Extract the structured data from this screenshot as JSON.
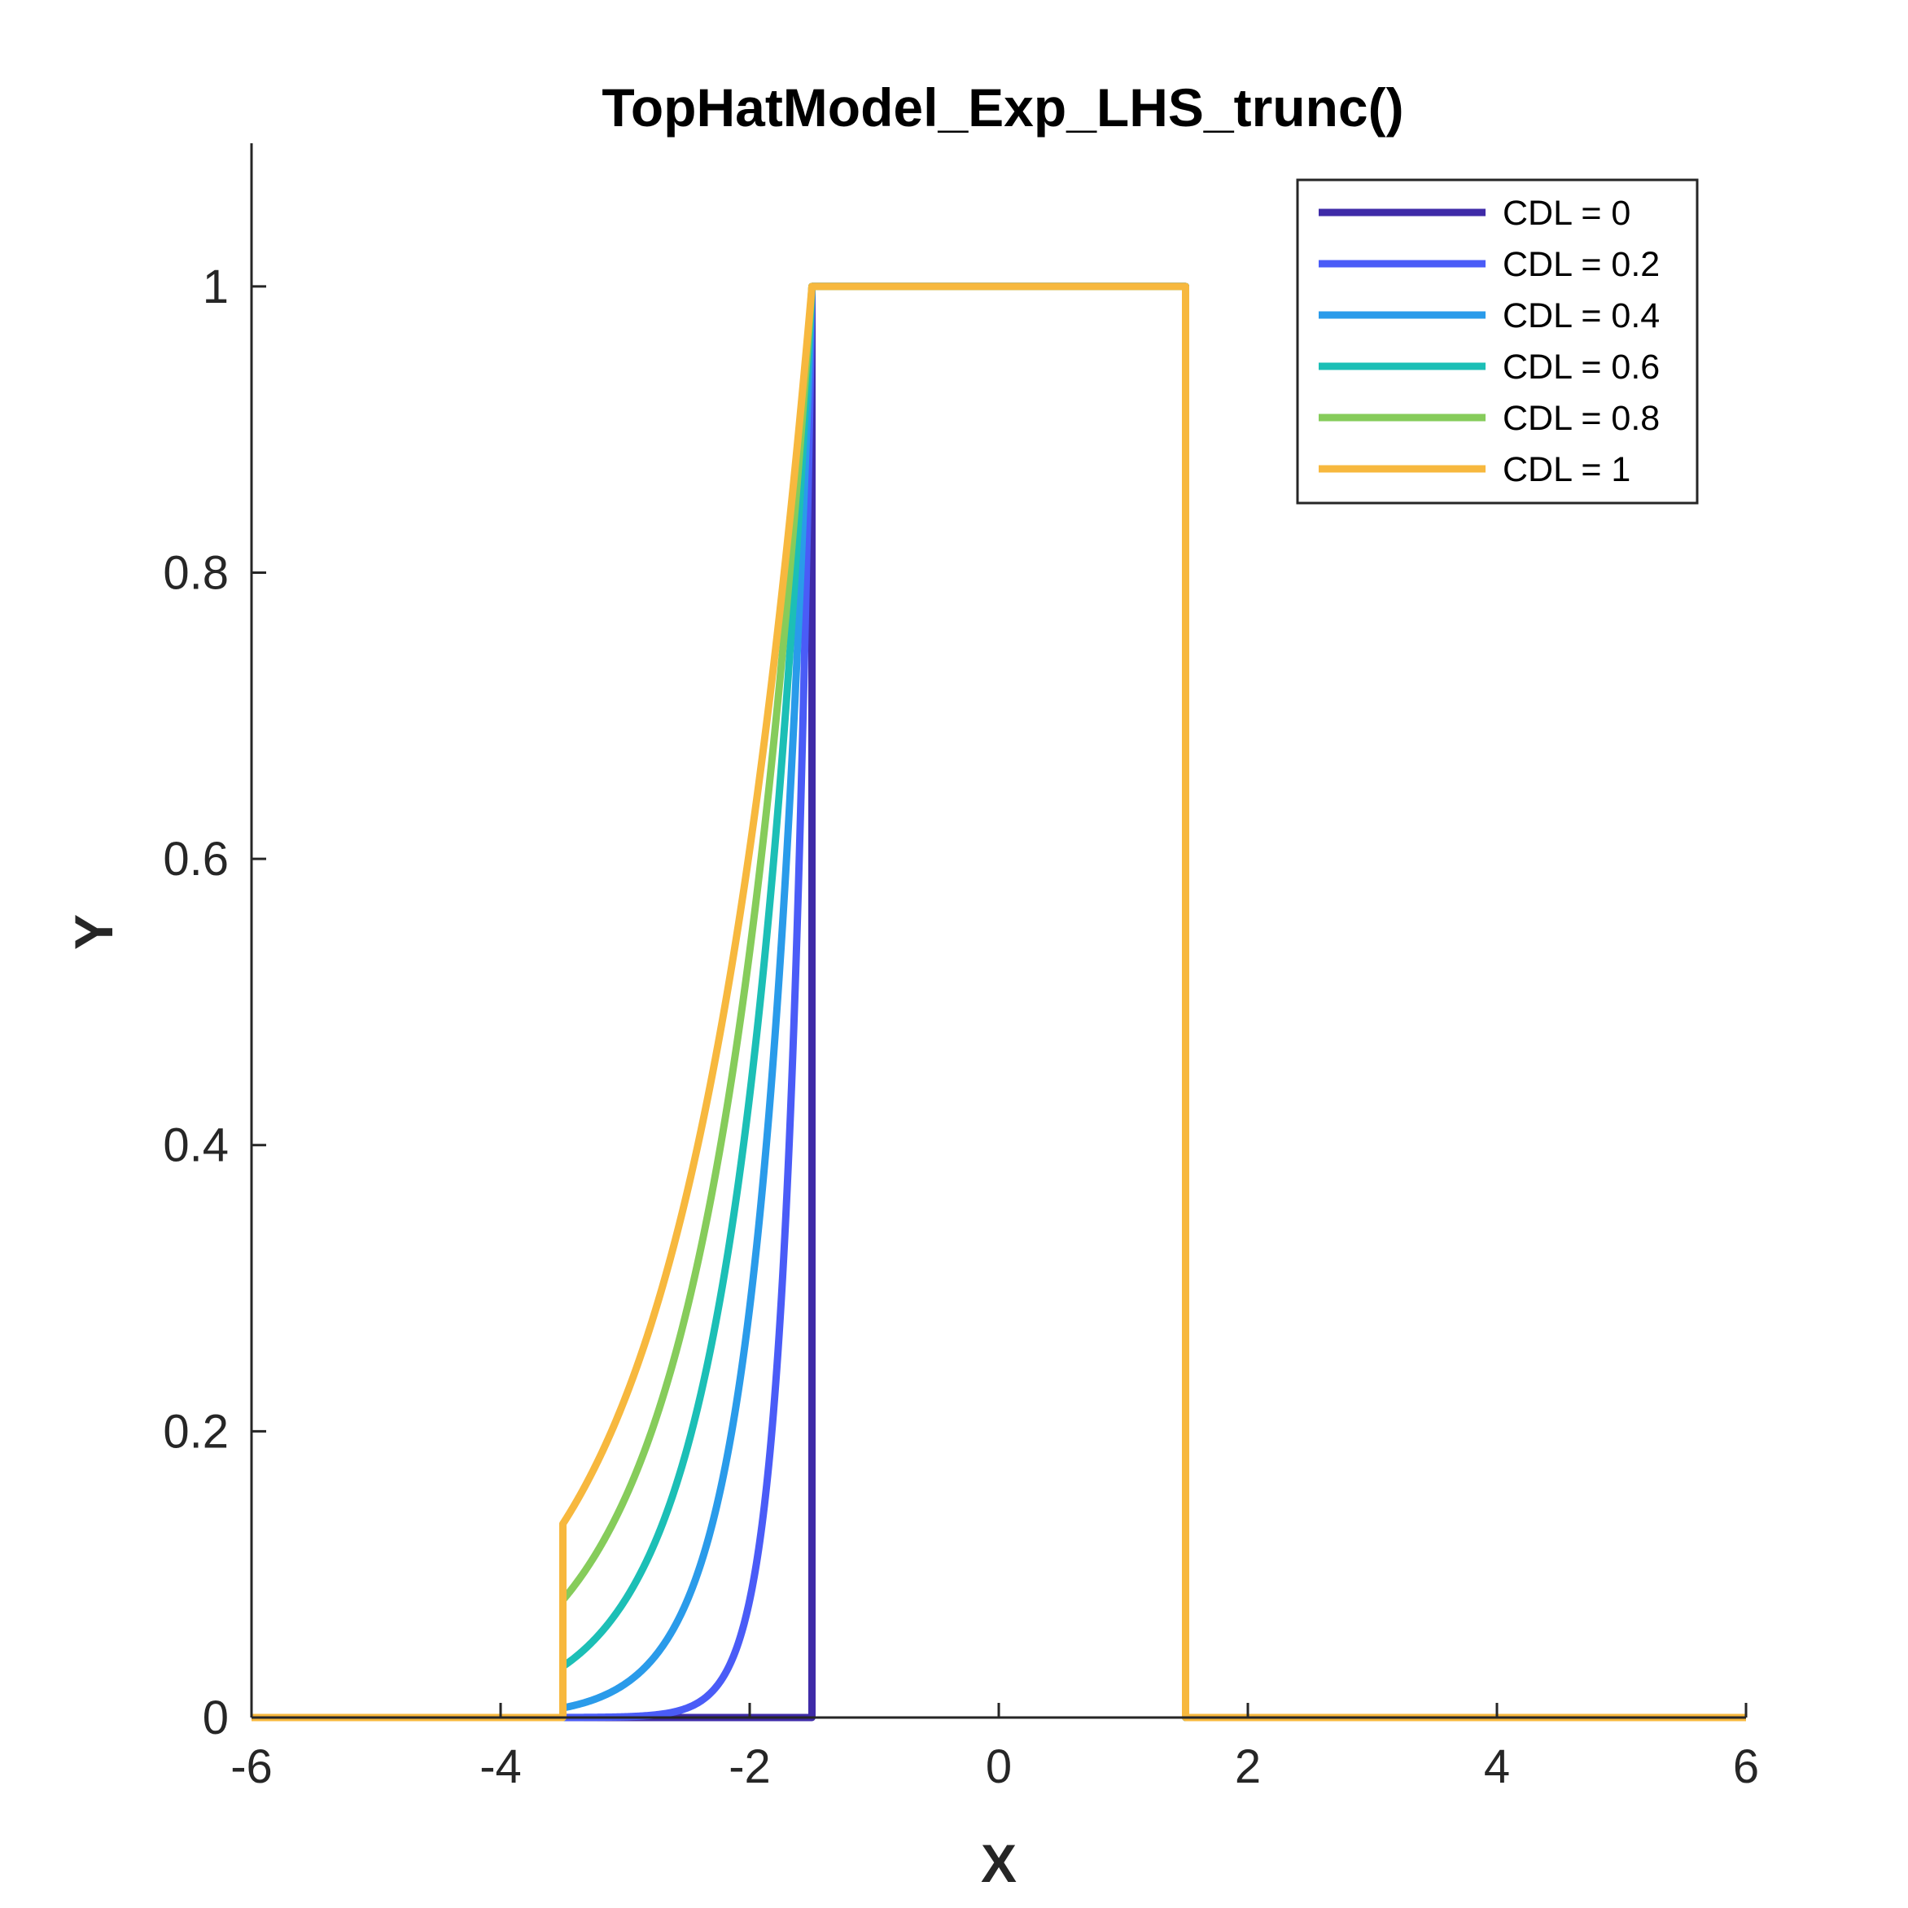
{
  "chart_data": {
    "type": "line",
    "title": "TopHatModel_Exp_LHS_trunc()",
    "xlabel": "X",
    "ylabel": "Y",
    "xlim": [
      -6,
      6
    ],
    "ylim": [
      0,
      1.1
    ],
    "xticks": [
      -6,
      -4,
      -2,
      0,
      2,
      4,
      6
    ],
    "yticks": [
      0,
      0.2,
      0.4,
      0.6,
      0.8,
      1
    ],
    "xtick_labels": [
      "-6",
      "-4",
      "-2",
      "0",
      "2",
      "4",
      "6"
    ],
    "ytick_labels": [
      "0",
      "0.2",
      "0.4",
      "0.6",
      "0.8",
      "1"
    ],
    "grid": false,
    "legend_position": "top-right",
    "top_hat": {
      "left_edge": -1.5,
      "right_edge": 1.5,
      "height": 1,
      "truncation_x": -3.5
    },
    "series": [
      {
        "name": "CDL = 0",
        "cdl": 0,
        "color": "#3f2ba8"
      },
      {
        "name": "CDL = 0.2",
        "cdl": 0.2,
        "color": "#4a5cf7"
      },
      {
        "name": "CDL = 0.4",
        "cdl": 0.4,
        "color": "#2a9bea"
      },
      {
        "name": "CDL = 0.6",
        "cdl": 0.6,
        "color": "#1cbfb6"
      },
      {
        "name": "CDL = 0.8",
        "cdl": 0.8,
        "color": "#86cc5b"
      },
      {
        "name": "CDL = 1",
        "cdl": 1,
        "color": "#f7b83e"
      }
    ]
  }
}
